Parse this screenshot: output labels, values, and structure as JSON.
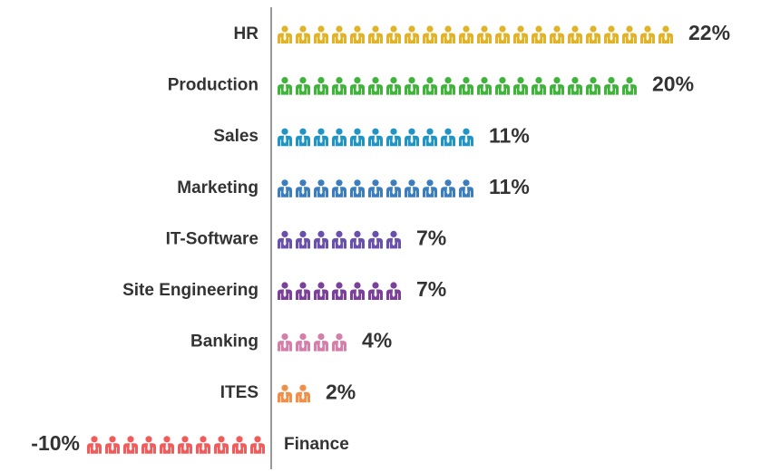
{
  "chart_data": {
    "type": "pictograph",
    "categories": [
      "HR",
      "Production",
      "Sales",
      "Marketing",
      "IT-Software",
      "Site Engineering",
      "Banking",
      "ITES",
      "Finance"
    ],
    "values": [
      22,
      20,
      11,
      11,
      7,
      7,
      4,
      2,
      -10
    ],
    "value_labels": [
      "22%",
      "20%",
      "11%",
      "11%",
      "7%",
      "7%",
      "4%",
      "2%",
      "-10%"
    ],
    "colors": [
      "#e2b227",
      "#3fb33a",
      "#2194c6",
      "#3b7dbd",
      "#6a50ad",
      "#7a409a",
      "#d47ea9",
      "#f18f48",
      "#f15b5b"
    ]
  }
}
